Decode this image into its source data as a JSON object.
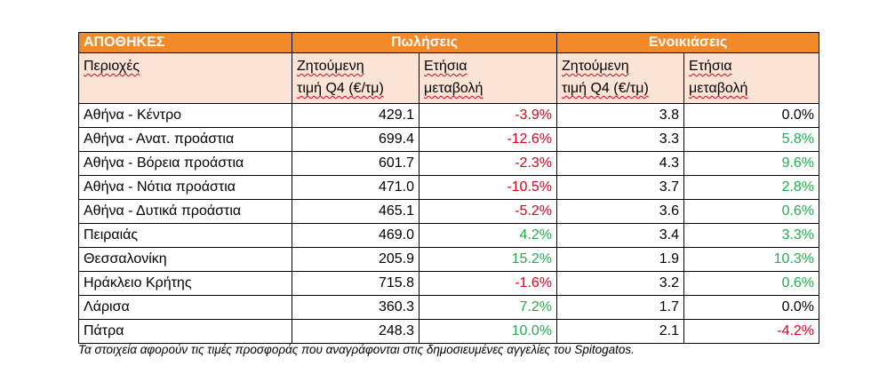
{
  "table": {
    "header": {
      "title": "ΑΠΟΘΗΚΕΣ",
      "sales": "Πωλήσεις",
      "rentals": "Ενοικιάσεις"
    },
    "subheader": {
      "areas": "Περιοχές",
      "sales_price_l1": "Ζητούμενη",
      "sales_price_l2": "τιμή Q4 (€/τμ)",
      "sales_change_l1": "Ετήσια",
      "sales_change_l2": "μεταβολή",
      "rent_price_l1": "Ζητούμενη",
      "rent_price_l2": "τιμή Q4 (€/τμ)",
      "rent_change_l1": "Ετήσια",
      "rent_change_l2": "μεταβολή"
    },
    "rows": [
      {
        "area": "Αθήνα - Κέντρο",
        "sale_price": "429.1",
        "sale_change": "-3.9%",
        "rent_price": "3.8",
        "rent_change": "0.0%"
      },
      {
        "area": "Αθήνα - Ανατ. προάστια",
        "sale_price": "699.4",
        "sale_change": "-12.6%",
        "rent_price": "3.3",
        "rent_change": "5.8%"
      },
      {
        "area": "Αθήνα - Βόρεια προάστια",
        "sale_price": "601.7",
        "sale_change": "-2.3%",
        "rent_price": "4.3",
        "rent_change": "9.6%"
      },
      {
        "area": "Αθήνα - Νότια προάστια",
        "sale_price": "471.0",
        "sale_change": "-10.5%",
        "rent_price": "3.7",
        "rent_change": "2.8%"
      },
      {
        "area": "Αθήνα - Δυτικά προάστια",
        "sale_price": "465.1",
        "sale_change": "-5.2%",
        "rent_price": "3.6",
        "rent_change": "0.6%"
      },
      {
        "area": "Πειραιάς",
        "sale_price": "469.0",
        "sale_change": "4.2%",
        "rent_price": "3.4",
        "rent_change": "3.3%"
      },
      {
        "area": "Θεσσαλονίκη",
        "sale_price": "205.9",
        "sale_change": "15.2%",
        "rent_price": "1.9",
        "rent_change": "10.3%"
      },
      {
        "area": "Ηράκλειο Κρήτης",
        "sale_price": "715.8",
        "sale_change": "-1.6%",
        "rent_price": "3.2",
        "rent_change": "0.6%"
      },
      {
        "area": "Λάρισα",
        "sale_price": "360.3",
        "sale_change": "7.2%",
        "rent_price": "1.7",
        "rent_change": "0.0%"
      },
      {
        "area": "Πάτρα",
        "sale_price": "248.3",
        "sale_change": "10.0%",
        "rent_price": "2.1",
        "rent_change": "-4.2%"
      }
    ]
  },
  "colors": {
    "header_bg": "#F28A2A",
    "subheader_bg": "#FBE3D5",
    "negative": "#E0001B",
    "positive": "#1FAF4A"
  },
  "footnote": "Τα στοιχεία αφορούν τις τιμές προσφοράς που αναγράφονται στις δημοσιευμένες αγγελίες του Spitogatos."
}
